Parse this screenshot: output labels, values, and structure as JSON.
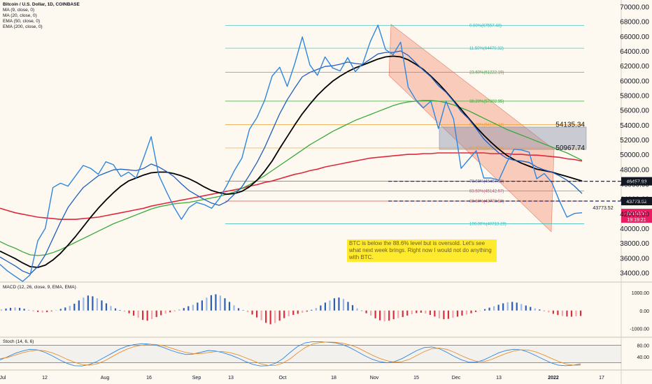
{
  "header": {
    "title": "Bitcoin / U.S. Dollar, 1D, COINBASE",
    "indicators": [
      "MA (9, close, 0)",
      "MA (20, close, 0)",
      "EMA (50, close, 0)",
      "EMA (200, close, 0)"
    ],
    "macd_label": "MACD (12, 26, close, 9, EMA, EMA)",
    "stoch_label": "Stoch (14, 6, 6)"
  },
  "note": "BTC is below the 88.6% level but is oversold. Let's see what next week brings. Right now I would not do anything with BTC.",
  "colors": {
    "price": "#2e86de",
    "ma9": "#1f5fbf",
    "ma20": "#000000",
    "ema50": "#3aa83a",
    "ema200": "#e0283c",
    "fib": "#2eb8b8",
    "channel": "#f5a58f",
    "box": "#9aa0b4",
    "current": "#e91e63",
    "dashed": "#1a237e"
  },
  "chart_data": [
    {
      "type": "line",
      "title": "Bitcoin / U.S. Dollar, 1D, COINBASE",
      "ylim": [
        33000,
        71000
      ],
      "y_ticks": [
        "70000.00",
        "68000.00",
        "66000.00",
        "64000.00",
        "62000.00",
        "60000.00",
        "58000.00",
        "56000.00",
        "54000.00",
        "52000.00",
        "50000.00",
        "48000.00",
        "46000.00",
        "44000.00",
        "42000.00",
        "40000.00",
        "38000.00",
        "36000.00",
        "34000.00"
      ],
      "x_ticks": [
        "Jul",
        "12",
        "Aug",
        "16",
        "Sep",
        "13",
        "Oct",
        "18",
        "Nov",
        "15",
        "Dec",
        "13",
        "2022",
        "17"
      ],
      "series": [
        {
          "name": "price",
          "values": [
            35200,
            34300,
            33600,
            32900,
            33800,
            38400,
            40100,
            45600,
            46200,
            45800,
            47200,
            48600,
            48200,
            47400,
            49100,
            48700,
            47100,
            47700,
            46900,
            49600,
            52500,
            47300,
            45100,
            43000,
            41300,
            42900,
            43600,
            43300,
            42800,
            44100,
            45900,
            47900,
            49600,
            53500,
            55100,
            57400,
            60700,
            61900,
            59300,
            62400,
            66000,
            62200,
            60800,
            63300,
            61800,
            61400,
            63200,
            61300,
            62400,
            65400,
            67600,
            64300,
            63600,
            65300,
            59200,
            57500,
            56400,
            57300,
            53600,
            57300,
            54900,
            48200,
            49400,
            50600,
            46900,
            46900,
            46600,
            48900,
            50800,
            50700,
            50400,
            46800,
            47500,
            46300,
            43800,
            41600,
            42100,
            42200
          ]
        },
        {
          "name": "MA (9, close, 0)",
          "values": [
            36200,
            35600,
            35000,
            34300,
            33900,
            34900,
            36500,
            38700,
            40900,
            42900,
            44300,
            45600,
            46400,
            47200,
            47600,
            48000,
            48100,
            48000,
            47900,
            48200,
            48800,
            48400,
            47800,
            47100,
            46100,
            45200,
            44600,
            44000,
            43500,
            43200,
            43700,
            44700,
            45700,
            47300,
            49000,
            51000,
            53300,
            55600,
            57500,
            59100,
            60600,
            61200,
            61600,
            62000,
            62100,
            62300,
            62600,
            62400,
            62300,
            63000,
            63700,
            63900,
            63900,
            64100,
            63500,
            62500,
            61500,
            60600,
            59400,
            58500,
            57300,
            55900,
            54900,
            53600,
            52200,
            51200,
            50300,
            49600,
            49300,
            49200,
            49000,
            48400,
            48000,
            47700,
            47200,
            46600,
            45800,
            44800
          ]
        },
        {
          "name": "MA (20, close, 0)",
          "values": [
            37000,
            36500,
            36000,
            35400,
            34900,
            34800,
            35100,
            35800,
            36700,
            37800,
            39000,
            40300,
            41600,
            42800,
            43900,
            44900,
            45800,
            46500,
            46900,
            47300,
            47600,
            47700,
            47700,
            47500,
            47200,
            46800,
            46300,
            45700,
            45200,
            44900,
            44700,
            44800,
            45100,
            45700,
            46600,
            47800,
            49200,
            50900,
            52500,
            54100,
            55600,
            56900,
            58100,
            59100,
            60000,
            60700,
            61300,
            61800,
            62200,
            62600,
            63000,
            63300,
            63400,
            63300,
            62900,
            62300,
            61600,
            60700,
            59700,
            58600,
            57400,
            56200,
            55000,
            53800,
            52700,
            51700,
            50800,
            50000,
            49400,
            48900,
            48500,
            48100,
            47900,
            47700,
            47400,
            47100,
            46800,
            46500
          ]
        },
        {
          "name": "EMA (50, close, 0)",
          "values": [
            38300,
            37800,
            37400,
            36900,
            36500,
            36400,
            36500,
            36800,
            37200,
            37700,
            38200,
            38700,
            39200,
            39700,
            40200,
            40700,
            41100,
            41500,
            41900,
            42300,
            42700,
            43000,
            43200,
            43400,
            43500,
            43600,
            43800,
            44000,
            44200,
            44400,
            44700,
            45000,
            45500,
            46000,
            46600,
            47200,
            47900,
            48600,
            49300,
            50000,
            50700,
            51400,
            52000,
            52600,
            53200,
            53700,
            54200,
            54700,
            55100,
            55500,
            55900,
            56300,
            56700,
            57000,
            57200,
            57300,
            57400,
            57400,
            57300,
            57100,
            56800,
            56400,
            56000,
            55500,
            55000,
            54500,
            54000,
            53500,
            53100,
            52700,
            52300,
            51900,
            51500,
            51100,
            50700,
            50300,
            49800,
            49300
          ]
        },
        {
          "name": "EMA (200, close, 0)",
          "values": [
            42800,
            42500,
            42200,
            42000,
            41800,
            41600,
            41500,
            41400,
            41300,
            41300,
            41300,
            41400,
            41500,
            41600,
            41800,
            42000,
            42200,
            42400,
            42600,
            42800,
            43100,
            43300,
            43500,
            43700,
            43900,
            44100,
            44300,
            44500,
            44700,
            44900,
            45100,
            45300,
            45500,
            45800,
            46000,
            46300,
            46500,
            46800,
            47100,
            47400,
            47600,
            47900,
            48100,
            48400,
            48600,
            48800,
            49000,
            49200,
            49400,
            49600,
            49700,
            49800,
            49900,
            50000,
            50100,
            50100,
            50200,
            50200,
            50300,
            50300,
            50300,
            50300,
            50300,
            50300,
            50300,
            50200,
            50200,
            50200,
            50100,
            50100,
            50000,
            50000,
            49900,
            49800,
            49700,
            49500,
            49400,
            49200
          ]
        }
      ],
      "fib_levels": [
        {
          "label": "0.00%(67557.40)",
          "value": 67557.4
        },
        {
          "label": "11.50%(64470.32)",
          "value": 64470.32
        },
        {
          "label": "23.60%(61222.19)",
          "value": 61222.19
        },
        {
          "label": "38.20%(57302.95)",
          "value": 57302.95
        },
        {
          "label": "50.00%(54135.34)",
          "value": 54135.34
        },
        {
          "label": "61.80%(50967.74)",
          "value": 50967.74
        },
        {
          "label": "78.60%(46457.93)",
          "value": 46457.93
        },
        {
          "label": "83.50%(45142.57)",
          "value": 45142.57
        },
        {
          "label": "88.60%(43773.52)",
          "value": 43773.52
        },
        {
          "label": "100.00%(40713.29)",
          "value": 40713.29
        }
      ],
      "markers": [
        {
          "label": "54135.34"
        },
        {
          "label": "50967.74"
        },
        {
          "label": "46457.93"
        },
        {
          "label": "43773.52"
        }
      ],
      "current_price": "42163.52",
      "countdown": "19:19:21"
    },
    {
      "type": "bar",
      "title": "MACD (12, 26, close, 9, EMA, EMA)",
      "ylim": [
        -1400,
        1500
      ],
      "y_ticks": [
        "1000.00",
        "0.00",
        "-1000.00"
      ],
      "values": [
        60,
        110,
        150,
        170,
        150,
        100,
        40,
        -20,
        -80,
        -110,
        -90,
        -40,
        20,
        90,
        170,
        260,
        380,
        560,
        720,
        830,
        790,
        680,
        560,
        400,
        250,
        120,
        30,
        -60,
        -150,
        -280,
        -400,
        -520,
        -560,
        -470,
        -360,
        -260,
        -170,
        -100,
        -20,
        60,
        140,
        240,
        320,
        440,
        560,
        720,
        850,
        900,
        830,
        680,
        480,
        290,
        130,
        20,
        -90,
        -220,
        -380,
        -540,
        -680,
        -760,
        -690,
        -560,
        -420,
        -320,
        -240,
        -180,
        -120,
        -60,
        40,
        140,
        280,
        440,
        560,
        680,
        720,
        640,
        480,
        300,
        120,
        0,
        -150,
        -280,
        -430,
        -540,
        -600,
        -560,
        -480,
        -420,
        -360,
        -280,
        -200,
        -140,
        -120,
        -160,
        -240,
        -330,
        -430,
        -480,
        -460,
        -400,
        -340,
        -280,
        -220,
        -150,
        -80,
        0,
        80,
        160,
        240,
        320,
        400,
        460,
        480,
        440,
        360,
        280,
        200,
        120,
        60,
        -20,
        -100,
        -180,
        -250,
        -300,
        -330,
        -340,
        -320,
        -300
      ]
    },
    {
      "type": "line",
      "title": "Stoch (14, 6, 6)",
      "ylim": [
        0,
        100
      ],
      "y_ticks": [
        "80.00",
        "40.00"
      ],
      "series": [
        {
          "name": "%K",
          "values": [
            30,
            40,
            52,
            60,
            66,
            64,
            56,
            44,
            30,
            18,
            10,
            9,
            14,
            24,
            38,
            52,
            66,
            76,
            82,
            85,
            84,
            80,
            72,
            62,
            54,
            48,
            50,
            56,
            62,
            60,
            54,
            46,
            36,
            24,
            14,
            9,
            10,
            18,
            34,
            56,
            76,
            88,
            92,
            92,
            90,
            88,
            82,
            72,
            58,
            44,
            32,
            24,
            20,
            24,
            34,
            48,
            62,
            72,
            74,
            68,
            56,
            42,
            30,
            22,
            22,
            30,
            42,
            54,
            62,
            66,
            64,
            56,
            44,
            32,
            20,
            12,
            10,
            12,
            16
          ]
        },
        {
          "name": "%D",
          "values": [
            34,
            38,
            46,
            54,
            60,
            63,
            61,
            54,
            44,
            32,
            22,
            14,
            12,
            16,
            26,
            40,
            54,
            66,
            75,
            80,
            83,
            82,
            78,
            70,
            62,
            55,
            51,
            51,
            55,
            58,
            58,
            54,
            47,
            37,
            27,
            17,
            11,
            11,
            19,
            34,
            54,
            72,
            84,
            89,
            91,
            90,
            87,
            81,
            72,
            59,
            46,
            35,
            27,
            22,
            24,
            32,
            45,
            58,
            68,
            70,
            66,
            56,
            44,
            33,
            25,
            24,
            31,
            42,
            52,
            60,
            64,
            63,
            57,
            47,
            36,
            25,
            16,
            12,
            12
          ]
        }
      ]
    }
  ]
}
